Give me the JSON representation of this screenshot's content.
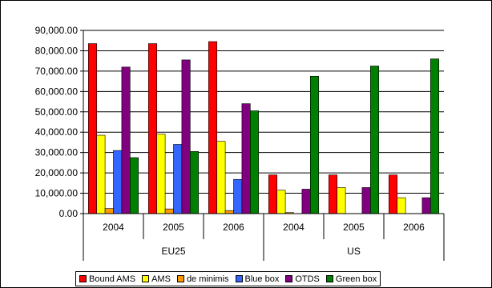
{
  "chart_data": {
    "type": "bar",
    "groups": [
      {
        "label": "EU25",
        "categories": [
          "2004",
          "2005",
          "2006"
        ]
      },
      {
        "label": "US",
        "categories": [
          "2004",
          "2005",
          "2006"
        ]
      }
    ],
    "series": [
      {
        "name": "Bound AMS",
        "color": "#ff0000",
        "values": [
          83500,
          83500,
          84500,
          19000,
          19000,
          19000
        ]
      },
      {
        "name": "AMS",
        "color": "#ffff00",
        "values": [
          38500,
          39000,
          35500,
          11500,
          12800,
          7800
        ]
      },
      {
        "name": "de minimis",
        "color": "#ff9900",
        "values": [
          2500,
          2300,
          1500,
          500,
          0,
          0
        ]
      },
      {
        "name": "Blue box",
        "color": "#3366ff",
        "values": [
          31000,
          34000,
          16800,
          0,
          0,
          0
        ]
      },
      {
        "name": "OTDS",
        "color": "#800080",
        "values": [
          72000,
          75500,
          54000,
          12000,
          12800,
          7800
        ]
      },
      {
        "name": "Green box",
        "color": "#008000",
        "values": [
          27500,
          30500,
          50500,
          67500,
          72500,
          76000
        ]
      }
    ],
    "y_ticks": [
      "0.00",
      "10,000.00",
      "20,000.00",
      "30,000.00",
      "40,000.00",
      "50,000.00",
      "60,000.00",
      "70,000.00",
      "80,000.00",
      "90,000.00"
    ],
    "ylim": [
      0,
      90000
    ],
    "grid": true,
    "legend_position": "bottom"
  }
}
